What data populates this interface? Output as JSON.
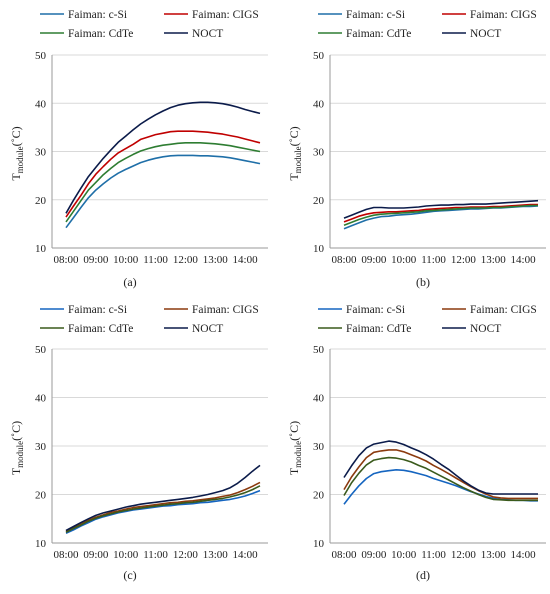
{
  "figure": {
    "panels": [
      "a",
      "b",
      "c",
      "d"
    ]
  },
  "chart_data": [
    {
      "panel": "(a)",
      "type": "line",
      "ylabel": "T",
      "ylabel_sub": "module",
      "ylabel_unit": "(˚C)",
      "ylim": [
        10,
        50
      ],
      "yticks": [
        10,
        20,
        30,
        40,
        50
      ],
      "xticks": [
        "08:00",
        "09:00",
        "10:00",
        "11:00",
        "12:00",
        "13:00",
        "14:00"
      ],
      "x_hours": [
        8.0,
        8.25,
        8.5,
        8.75,
        9.0,
        9.25,
        9.5,
        9.75,
        10.0,
        10.25,
        10.5,
        10.75,
        11.0,
        11.25,
        11.5,
        11.75,
        12.0,
        12.25,
        12.5,
        12.75,
        13.0,
        13.25,
        13.5,
        13.75,
        14.0,
        14.25,
        14.5
      ],
      "grid": "horizontal",
      "legend": "top",
      "series": [
        {
          "name": "Faiman: c-Si",
          "color": "#1f6fa8",
          "values": [
            14.2,
            16.3,
            18.4,
            20.4,
            22.0,
            23.3,
            24.5,
            25.5,
            26.3,
            27.0,
            27.7,
            28.2,
            28.6,
            28.9,
            29.1,
            29.2,
            29.2,
            29.2,
            29.1,
            29.1,
            29.0,
            28.9,
            28.7,
            28.4,
            28.1,
            27.8,
            27.5
          ]
        },
        {
          "name": "Faiman: CIGS",
          "color": "#c00000",
          "values": [
            16.4,
            18.7,
            20.9,
            23.3,
            25.3,
            26.9,
            28.4,
            29.7,
            30.6,
            31.5,
            32.5,
            33.0,
            33.5,
            33.8,
            34.1,
            34.2,
            34.2,
            34.2,
            34.1,
            34.0,
            33.8,
            33.6,
            33.3,
            33.0,
            32.6,
            32.2,
            31.8
          ]
        },
        {
          "name": "Faiman: CdTe",
          "color": "#2e7d32",
          "values": [
            15.4,
            17.6,
            19.8,
            22.0,
            23.6,
            25.2,
            26.5,
            27.7,
            28.6,
            29.4,
            30.1,
            30.6,
            31.0,
            31.3,
            31.5,
            31.7,
            31.8,
            31.8,
            31.8,
            31.7,
            31.6,
            31.4,
            31.2,
            30.9,
            30.6,
            30.3,
            30.0
          ]
        },
        {
          "name": "NOCT",
          "color": "#0b1b4a",
          "values": [
            17.2,
            19.9,
            22.4,
            24.8,
            26.7,
            28.6,
            30.3,
            31.9,
            33.2,
            34.5,
            35.7,
            36.7,
            37.6,
            38.4,
            39.1,
            39.6,
            39.9,
            40.1,
            40.2,
            40.2,
            40.1,
            39.9,
            39.6,
            39.2,
            38.7,
            38.3,
            37.9
          ]
        }
      ]
    },
    {
      "panel": "(b)",
      "type": "line",
      "ylabel": "T",
      "ylabel_sub": "module",
      "ylabel_unit": "(˚C)",
      "ylim": [
        10,
        50
      ],
      "yticks": [
        10,
        20,
        30,
        40,
        50
      ],
      "xticks": [
        "08:00",
        "09:00",
        "10:00",
        "11:00",
        "12:00",
        "13:00",
        "14:00"
      ],
      "x_hours": [
        8.0,
        8.25,
        8.5,
        8.75,
        9.0,
        9.25,
        9.5,
        9.75,
        10.0,
        10.25,
        10.5,
        10.75,
        11.0,
        11.25,
        11.5,
        11.75,
        12.0,
        12.25,
        12.5,
        12.75,
        13.0,
        13.25,
        13.5,
        13.75,
        14.0,
        14.25,
        14.5
      ],
      "grid": "horizontal",
      "legend": "top",
      "series": [
        {
          "name": "Faiman: c-Si",
          "color": "#1f6fa8",
          "values": [
            14.0,
            14.6,
            15.2,
            15.8,
            16.2,
            16.5,
            16.6,
            16.8,
            16.9,
            17.0,
            17.2,
            17.4,
            17.6,
            17.7,
            17.8,
            17.9,
            18.0,
            18.1,
            18.1,
            18.2,
            18.3,
            18.3,
            18.4,
            18.5,
            18.6,
            18.6,
            18.7
          ]
        },
        {
          "name": "Faiman: CIGS",
          "color": "#c00000",
          "values": [
            15.4,
            16.0,
            16.6,
            17.0,
            17.3,
            17.4,
            17.5,
            17.5,
            17.6,
            17.7,
            17.8,
            18.0,
            18.1,
            18.2,
            18.3,
            18.4,
            18.4,
            18.5,
            18.5,
            18.5,
            18.6,
            18.6,
            18.7,
            18.8,
            18.9,
            19.0,
            19.0
          ]
        },
        {
          "name": "Faiman: CdTe",
          "color": "#2e7d32",
          "values": [
            14.7,
            15.3,
            15.9,
            16.4,
            16.8,
            17.0,
            17.1,
            17.2,
            17.3,
            17.4,
            17.5,
            17.7,
            17.8,
            17.9,
            18.0,
            18.1,
            18.2,
            18.3,
            18.3,
            18.3,
            18.4,
            18.4,
            18.5,
            18.6,
            18.7,
            18.8,
            18.8
          ]
        },
        {
          "name": "NOCT",
          "color": "#0b1b4a",
          "values": [
            16.2,
            16.8,
            17.4,
            18.0,
            18.4,
            18.4,
            18.3,
            18.3,
            18.3,
            18.4,
            18.5,
            18.7,
            18.8,
            18.9,
            18.9,
            19.0,
            19.0,
            19.1,
            19.1,
            19.1,
            19.2,
            19.3,
            19.4,
            19.5,
            19.6,
            19.7,
            19.8
          ]
        }
      ]
    },
    {
      "panel": "(c)",
      "type": "line",
      "ylabel": "T",
      "ylabel_sub": "module",
      "ylabel_unit": "(˚C)",
      "ylim": [
        10,
        50
      ],
      "yticks": [
        10,
        20,
        30,
        40,
        50
      ],
      "xticks": [
        "08:00",
        "09:00",
        "10:00",
        "11:00",
        "12:00",
        "13:00",
        "14:00"
      ],
      "x_hours": [
        8.0,
        8.25,
        8.5,
        8.75,
        9.0,
        9.25,
        9.5,
        9.75,
        10.0,
        10.25,
        10.5,
        10.75,
        11.0,
        11.25,
        11.5,
        11.75,
        12.0,
        12.25,
        12.5,
        12.75,
        13.0,
        13.25,
        13.5,
        13.75,
        14.0,
        14.25,
        14.5
      ],
      "grid": "horizontal",
      "legend": "top",
      "series": [
        {
          "name": "Faiman: c-Si",
          "color": "#1565c0",
          "values": [
            12.0,
            12.7,
            13.5,
            14.2,
            14.9,
            15.4,
            15.8,
            16.2,
            16.5,
            16.8,
            17.0,
            17.2,
            17.4,
            17.6,
            17.7,
            17.9,
            18.0,
            18.1,
            18.3,
            18.4,
            18.6,
            18.8,
            19.0,
            19.3,
            19.7,
            20.2,
            20.8
          ]
        },
        {
          "name": "Faiman: CIGS",
          "color": "#8b3a0e",
          "values": [
            12.4,
            13.2,
            13.9,
            14.7,
            15.3,
            15.8,
            16.3,
            16.6,
            17.0,
            17.3,
            17.5,
            17.7,
            17.9,
            18.1,
            18.3,
            18.4,
            18.6,
            18.7,
            18.9,
            19.1,
            19.3,
            19.6,
            19.9,
            20.4,
            21.0,
            21.7,
            22.5
          ]
        },
        {
          "name": "Faiman: CdTe",
          "color": "#3a5a1c",
          "values": [
            12.2,
            13.0,
            13.7,
            14.5,
            15.1,
            15.6,
            16.0,
            16.4,
            16.7,
            17.0,
            17.2,
            17.4,
            17.6,
            17.8,
            18.0,
            18.1,
            18.3,
            18.4,
            18.6,
            18.8,
            19.0,
            19.2,
            19.5,
            19.9,
            20.4,
            21.0,
            21.8
          ]
        },
        {
          "name": "NOCT",
          "color": "#0b1b4a",
          "values": [
            12.6,
            13.4,
            14.2,
            15.0,
            15.7,
            16.2,
            16.6,
            17.0,
            17.4,
            17.7,
            18.0,
            18.2,
            18.4,
            18.6,
            18.8,
            19.0,
            19.2,
            19.4,
            19.7,
            20.0,
            20.4,
            20.8,
            21.4,
            22.3,
            23.5,
            24.8,
            26.0
          ]
        }
      ]
    },
    {
      "panel": "(d)",
      "type": "line",
      "ylabel": "T",
      "ylabel_sub": "module",
      "ylabel_unit": "(˚C)",
      "ylim": [
        10,
        50
      ],
      "yticks": [
        10,
        20,
        30,
        40,
        50
      ],
      "xticks": [
        "08:00",
        "09:00",
        "10:00",
        "11:00",
        "12:00",
        "13:00",
        "14:00"
      ],
      "x_hours": [
        8.0,
        8.25,
        8.5,
        8.75,
        9.0,
        9.25,
        9.5,
        9.75,
        10.0,
        10.25,
        10.5,
        10.75,
        11.0,
        11.25,
        11.5,
        11.75,
        12.0,
        12.25,
        12.5,
        12.75,
        13.0,
        13.25,
        13.5,
        13.75,
        14.0,
        14.25,
        14.5
      ],
      "grid": "horizontal",
      "legend": "top",
      "series": [
        {
          "name": "Faiman: c-Si",
          "color": "#1565c0",
          "values": [
            18.0,
            20.0,
            21.8,
            23.3,
            24.3,
            24.7,
            24.9,
            25.1,
            25.0,
            24.7,
            24.3,
            23.9,
            23.3,
            22.8,
            22.3,
            21.8,
            21.2,
            20.6,
            20.1,
            19.6,
            19.2,
            19.0,
            18.9,
            18.8,
            18.8,
            18.7,
            18.7
          ]
        },
        {
          "name": "Faiman: CIGS",
          "color": "#8b3a0e",
          "values": [
            21.0,
            23.6,
            25.7,
            27.6,
            28.7,
            29.0,
            29.2,
            29.2,
            28.8,
            28.2,
            27.6,
            26.9,
            26.0,
            25.2,
            24.3,
            23.4,
            22.5,
            21.6,
            20.8,
            20.1,
            19.5,
            19.3,
            19.2,
            19.2,
            19.2,
            19.2,
            19.2
          ]
        },
        {
          "name": "Faiman: CdTe",
          "color": "#3a5a1c",
          "values": [
            19.8,
            22.4,
            24.4,
            26.1,
            27.1,
            27.4,
            27.6,
            27.5,
            27.2,
            26.7,
            26.0,
            25.4,
            24.6,
            23.8,
            23.0,
            22.2,
            21.4,
            20.7,
            20.0,
            19.4,
            19.0,
            18.9,
            18.8,
            18.8,
            18.8,
            18.8,
            18.8
          ]
        },
        {
          "name": "NOCT",
          "color": "#0b1b4a",
          "values": [
            23.5,
            25.9,
            28.0,
            29.6,
            30.4,
            30.7,
            31.0,
            30.8,
            30.3,
            29.6,
            29.0,
            28.2,
            27.3,
            26.2,
            25.2,
            24.0,
            22.8,
            21.8,
            20.9,
            20.3,
            20.1,
            20.1,
            20.1,
            20.1,
            20.1,
            20.1,
            20.1
          ]
        }
      ]
    }
  ]
}
